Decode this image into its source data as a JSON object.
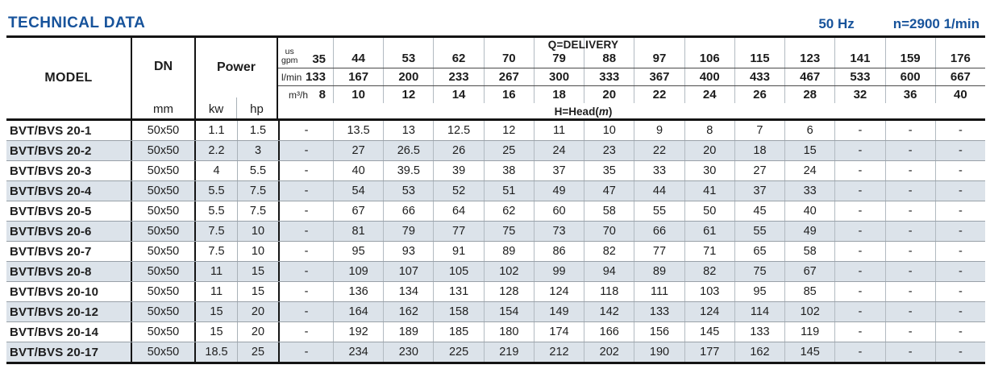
{
  "header": {
    "title": "TECHNICAL DATA",
    "frequency": "50 Hz",
    "speed": "n=2900 1/min"
  },
  "table": {
    "model_header": "MODEL",
    "dn_header": "DN",
    "dn_unit": "mm",
    "power_header": "Power",
    "power_units": [
      "kw",
      "hp"
    ],
    "delivery_title": "Q=DELIVERY",
    "head_title_pre": "H=Head(",
    "head_title_unit": "m",
    "head_title_post": ")",
    "unit_rows": [
      {
        "label_lines": [
          "us",
          "gpm"
        ],
        "values": [
          "35",
          "44",
          "53",
          "62",
          "70",
          "79",
          "88",
          "97",
          "106",
          "115",
          "123",
          "141",
          "159",
          "176"
        ]
      },
      {
        "label_lines": [
          "l/min"
        ],
        "values": [
          "133",
          "167",
          "200",
          "233",
          "267",
          "300",
          "333",
          "367",
          "400",
          "433",
          "467",
          "533",
          "600",
          "667"
        ]
      },
      {
        "label_lines": [
          "m³/h"
        ],
        "values": [
          "8",
          "10",
          "12",
          "14",
          "16",
          "18",
          "20",
          "22",
          "24",
          "26",
          "28",
          "32",
          "36",
          "40"
        ]
      }
    ],
    "rows": [
      {
        "model": "BVT/BVS 20-1",
        "dn": "50x50",
        "kw": "1.1",
        "hp": "1.5",
        "heads": [
          "-",
          "13.5",
          "13",
          "12.5",
          "12",
          "11",
          "10",
          "9",
          "8",
          "7",
          "6",
          "-",
          "-",
          "-"
        ]
      },
      {
        "model": "BVT/BVS 20-2",
        "dn": "50x50",
        "kw": "2.2",
        "hp": "3",
        "heads": [
          "-",
          "27",
          "26.5",
          "26",
          "25",
          "24",
          "23",
          "22",
          "20",
          "18",
          "15",
          "-",
          "-",
          "-"
        ]
      },
      {
        "model": "BVT/BVS 20-3",
        "dn": "50x50",
        "kw": "4",
        "hp": "5.5",
        "heads": [
          "-",
          "40",
          "39.5",
          "39",
          "38",
          "37",
          "35",
          "33",
          "30",
          "27",
          "24",
          "-",
          "-",
          "-"
        ]
      },
      {
        "model": "BVT/BVS 20-4",
        "dn": "50x50",
        "kw": "5.5",
        "hp": "7.5",
        "heads": [
          "-",
          "54",
          "53",
          "52",
          "51",
          "49",
          "47",
          "44",
          "41",
          "37",
          "33",
          "-",
          "-",
          "-"
        ]
      },
      {
        "model": "BVT/BVS 20-5",
        "dn": "50x50",
        "kw": "5.5",
        "hp": "7.5",
        "heads": [
          "-",
          "67",
          "66",
          "64",
          "62",
          "60",
          "58",
          "55",
          "50",
          "45",
          "40",
          "-",
          "-",
          "-"
        ]
      },
      {
        "model": "BVT/BVS 20-6",
        "dn": "50x50",
        "kw": "7.5",
        "hp": "10",
        "heads": [
          "-",
          "81",
          "79",
          "77",
          "75",
          "73",
          "70",
          "66",
          "61",
          "55",
          "49",
          "-",
          "-",
          "-"
        ]
      },
      {
        "model": "BVT/BVS 20-7",
        "dn": "50x50",
        "kw": "7.5",
        "hp": "10",
        "heads": [
          "-",
          "95",
          "93",
          "91",
          "89",
          "86",
          "82",
          "77",
          "71",
          "65",
          "58",
          "-",
          "-",
          "-"
        ]
      },
      {
        "model": "BVT/BVS 20-8",
        "dn": "50x50",
        "kw": "11",
        "hp": "15",
        "heads": [
          "-",
          "109",
          "107",
          "105",
          "102",
          "99",
          "94",
          "89",
          "82",
          "75",
          "67",
          "-",
          "-",
          "-"
        ]
      },
      {
        "model": "BVT/BVS 20-10",
        "dn": "50x50",
        "kw": "11",
        "hp": "15",
        "heads": [
          "-",
          "136",
          "134",
          "131",
          "128",
          "124",
          "118",
          "111",
          "103",
          "95",
          "85",
          "-",
          "-",
          "-"
        ]
      },
      {
        "model": "BVT/BVS 20-12",
        "dn": "50x50",
        "kw": "15",
        "hp": "20",
        "heads": [
          "-",
          "164",
          "162",
          "158",
          "154",
          "149",
          "142",
          "133",
          "124",
          "114",
          "102",
          "-",
          "-",
          "-"
        ]
      },
      {
        "model": "BVT/BVS 20-14",
        "dn": "50x50",
        "kw": "15",
        "hp": "20",
        "heads": [
          "-",
          "192",
          "189",
          "185",
          "180",
          "174",
          "166",
          "156",
          "145",
          "133",
          "119",
          "-",
          "-",
          "-"
        ]
      },
      {
        "model": "BVT/BVS 20-17",
        "dn": "50x50",
        "kw": "18.5",
        "hp": "25",
        "heads": [
          "-",
          "234",
          "230",
          "225",
          "219",
          "212",
          "202",
          "190",
          "177",
          "162",
          "145",
          "-",
          "-",
          "-"
        ]
      }
    ]
  }
}
